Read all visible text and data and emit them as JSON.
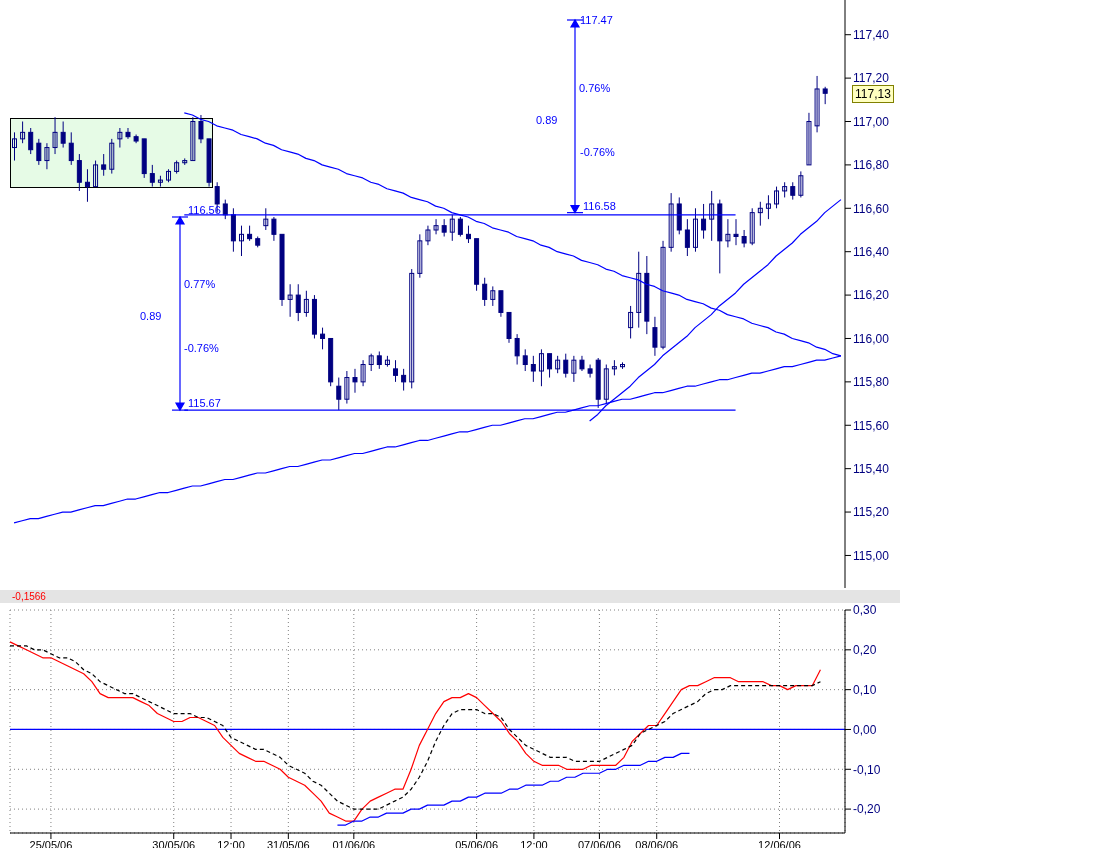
{
  "chart_data": [
    {
      "type": "candlestick",
      "ylim": [
        114.85,
        117.56
      ],
      "tick_labels": "y",
      "categories": [
        null,
        null,
        null,
        null,
        null,
        null,
        null,
        null,
        null,
        null,
        null,
        null,
        null,
        null,
        null,
        null,
        null,
        null,
        null,
        null,
        null,
        null,
        null,
        null,
        null,
        null,
        null,
        null,
        null,
        null,
        null,
        null,
        null,
        null,
        null,
        null,
        null,
        null,
        null,
        null,
        null,
        null,
        null,
        null,
        null,
        null,
        null,
        null,
        null,
        null,
        null,
        null,
        null,
        null,
        null,
        null,
        null,
        null,
        null,
        null,
        null,
        null,
        null,
        null,
        null,
        null,
        null,
        null,
        null,
        null,
        null,
        null,
        null,
        null,
        null,
        null,
        null,
        null,
        null,
        null,
        null,
        null,
        null,
        null,
        null,
        null,
        null,
        null,
        null,
        null,
        null,
        null,
        null,
        null,
        null,
        null,
        null,
        null,
        null,
        null,
        null,
        null,
        null
      ],
      "yticks": [
        {
          "value": 115,
          "label": "115,00"
        },
        {
          "value": 115.2,
          "label": "115,20"
        },
        {
          "value": 115.4,
          "label": "115,40"
        },
        {
          "value": 115.6,
          "label": "115,60"
        },
        {
          "value": 115.8,
          "label": "115,80"
        },
        {
          "value": 116,
          "label": "116,00"
        },
        {
          "value": 116.2,
          "label": "116,20"
        },
        {
          "value": 116.4,
          "label": "116,40"
        },
        {
          "value": 116.6,
          "label": "116,60"
        },
        {
          "value": 116.8,
          "label": "116,80"
        },
        {
          "value": 117,
          "label": "117,00"
        },
        {
          "value": 117.2,
          "label": "117,20"
        },
        {
          "value": 117.4,
          "label": "117,40"
        }
      ],
      "series": [
        {
          "color": "#000080",
          "ohlc": [
            [
              116.88,
              116.95,
              116.82,
              116.92
            ],
            [
              116.92,
              117.0,
              116.9,
              116.95
            ],
            [
              116.95,
              116.97,
              116.85,
              116.87
            ],
            [
              116.9,
              116.92,
              116.8,
              116.82
            ],
            [
              116.82,
              116.9,
              116.78,
              116.88
            ],
            [
              116.88,
              117.02,
              116.85,
              116.95
            ],
            [
              116.95,
              117.0,
              116.88,
              116.9
            ],
            [
              116.9,
              116.95,
              116.8,
              116.82
            ],
            [
              116.82,
              116.85,
              116.68,
              116.72
            ],
            [
              116.72,
              116.78,
              116.63,
              116.7
            ],
            [
              116.7,
              116.82,
              116.7,
              116.8
            ],
            [
              116.8,
              116.85,
              116.75,
              116.78
            ],
            [
              116.78,
              116.92,
              116.76,
              116.9
            ],
            [
              116.92,
              116.97,
              116.88,
              116.95
            ],
            [
              116.95,
              116.97,
              116.92,
              116.93
            ],
            [
              116.93,
              116.94,
              116.9,
              116.91
            ],
            [
              116.92,
              116.92,
              116.74,
              116.76
            ],
            [
              116.76,
              116.8,
              116.7,
              116.72
            ],
            [
              116.72,
              116.75,
              116.7,
              116.73
            ],
            [
              116.73,
              116.78,
              116.72,
              116.77
            ],
            [
              116.77,
              116.82,
              116.76,
              116.81
            ],
            [
              116.81,
              116.83,
              116.8,
              116.82
            ],
            [
              116.82,
              117.02,
              116.82,
              117.0
            ],
            [
              117.0,
              117.03,
              116.9,
              116.92
            ],
            [
              116.92,
              116.92,
              116.7,
              116.72
            ],
            [
              116.7,
              116.72,
              116.58,
              116.62
            ],
            [
              116.62,
              116.64,
              116.55,
              116.57
            ],
            [
              116.57,
              116.6,
              116.4,
              116.45
            ],
            [
              116.45,
              116.52,
              116.38,
              116.48
            ],
            [
              116.48,
              116.52,
              116.45,
              116.46
            ],
            [
              116.46,
              116.47,
              116.42,
              116.43
            ],
            [
              116.52,
              116.6,
              116.5,
              116.55
            ],
            [
              116.55,
              116.56,
              116.45,
              116.48
            ],
            [
              116.48,
              116.48,
              116.15,
              116.18
            ],
            [
              116.18,
              116.25,
              116.1,
              116.2
            ],
            [
              116.2,
              116.25,
              116.08,
              116.12
            ],
            [
              116.12,
              116.22,
              116.1,
              116.18
            ],
            [
              116.18,
              116.2,
              116.0,
              116.02
            ],
            [
              116.02,
              116.05,
              115.95,
              116.0
            ],
            [
              116.0,
              116.0,
              115.78,
              115.8
            ],
            [
              115.78,
              115.82,
              115.67,
              115.72
            ],
            [
              115.72,
              115.85,
              115.7,
              115.82
            ],
            [
              115.82,
              115.86,
              115.75,
              115.8
            ],
            [
              115.8,
              115.9,
              115.78,
              115.88
            ],
            [
              115.88,
              115.93,
              115.85,
              115.92
            ],
            [
              115.92,
              115.94,
              115.86,
              115.88
            ],
            [
              115.88,
              115.92,
              115.87,
              115.9
            ],
            [
              115.86,
              115.9,
              115.8,
              115.83
            ],
            [
              115.83,
              115.86,
              115.76,
              115.8
            ],
            [
              115.8,
              116.32,
              115.77,
              116.3
            ],
            [
              116.3,
              116.48,
              116.28,
              116.45
            ],
            [
              116.45,
              116.52,
              116.43,
              116.5
            ],
            [
              116.5,
              116.55,
              116.48,
              116.52
            ],
            [
              116.52,
              116.55,
              116.47,
              116.49
            ],
            [
              116.49,
              116.57,
              116.45,
              116.55
            ],
            [
              116.55,
              116.56,
              116.47,
              116.48
            ],
            [
              116.48,
              116.52,
              116.44,
              116.46
            ],
            [
              116.46,
              116.46,
              116.22,
              116.25
            ],
            [
              116.25,
              116.28,
              116.15,
              116.18
            ],
            [
              116.18,
              116.24,
              116.15,
              116.22
            ],
            [
              116.22,
              116.22,
              116.1,
              116.12
            ],
            [
              116.12,
              116.12,
              115.98,
              116.0
            ],
            [
              116.0,
              116.02,
              115.88,
              115.92
            ],
            [
              115.92,
              115.95,
              115.85,
              115.88
            ],
            [
              115.88,
              115.92,
              115.8,
              115.85
            ],
            [
              115.85,
              115.95,
              115.78,
              115.93
            ],
            [
              115.93,
              115.93,
              115.82,
              115.86
            ],
            [
              115.86,
              115.92,
              115.84,
              115.9
            ],
            [
              115.9,
              115.93,
              115.82,
              115.84
            ],
            [
              115.84,
              115.92,
              115.8,
              115.9
            ],
            [
              115.9,
              115.92,
              115.85,
              115.86
            ],
            [
              115.86,
              115.88,
              115.82,
              115.84
            ],
            [
              115.9,
              115.91,
              115.68,
              115.72
            ],
            [
              115.72,
              115.88,
              115.7,
              115.86
            ],
            [
              115.86,
              115.9,
              115.83,
              115.87
            ],
            [
              115.87,
              115.89,
              115.86,
              115.88
            ],
            [
              116.05,
              116.15,
              116.0,
              116.12
            ],
            [
              116.12,
              116.4,
              116.05,
              116.3
            ],
            [
              116.3,
              116.38,
              116.02,
              116.08
            ],
            [
              116.05,
              116.1,
              115.92,
              115.96
            ],
            [
              115.96,
              116.45,
              115.95,
              116.42
            ],
            [
              116.42,
              116.67,
              116.4,
              116.62
            ],
            [
              116.62,
              116.65,
              116.48,
              116.5
            ],
            [
              116.5,
              116.55,
              116.38,
              116.42
            ],
            [
              116.42,
              116.6,
              116.4,
              116.55
            ],
            [
              116.55,
              116.62,
              116.46,
              116.5
            ],
            [
              116.55,
              116.68,
              116.45,
              116.62
            ],
            [
              116.62,
              116.64,
              116.3,
              116.45
            ],
            [
              116.45,
              116.55,
              116.42,
              116.48
            ],
            [
              116.48,
              116.55,
              116.43,
              116.47
            ],
            [
              116.47,
              116.5,
              116.42,
              116.44
            ],
            [
              116.44,
              116.6,
              116.43,
              116.58
            ],
            [
              116.58,
              116.63,
              116.52,
              116.6
            ],
            [
              116.6,
              116.66,
              116.55,
              116.62
            ],
            [
              116.62,
              116.7,
              116.6,
              116.68
            ],
            [
              116.68,
              116.72,
              116.65,
              116.7
            ],
            [
              116.7,
              116.72,
              116.64,
              116.66
            ],
            [
              116.66,
              116.77,
              116.65,
              116.75
            ],
            [
              116.8,
              117.04,
              116.8,
              117.0
            ],
            [
              116.98,
              117.21,
              116.95,
              117.15
            ],
            [
              117.15,
              117.16,
              117.08,
              117.13
            ],
            null,
            null
          ]
        },
        {
          "type": "line",
          "color": "#0000ff",
          "values": [
            null,
            null,
            null,
            null,
            null,
            null,
            null,
            null,
            null,
            null,
            null,
            null,
            null,
            null,
            null,
            null,
            null,
            null,
            null,
            null,
            null,
            117.04,
            117.03,
            117.01,
            117.0,
            116.98,
            116.97,
            116.96,
            116.94,
            116.93,
            116.92,
            116.9,
            116.89,
            116.87,
            116.86,
            116.85,
            116.83,
            116.82,
            116.8,
            116.79,
            116.78,
            116.76,
            116.75,
            116.74,
            116.72,
            116.71,
            116.69,
            116.68,
            116.67,
            116.65,
            116.64,
            116.63,
            116.61,
            116.6,
            116.58,
            116.57,
            116.56,
            116.54,
            116.53,
            116.51,
            116.5,
            116.49,
            116.47,
            116.46,
            116.45,
            116.43,
            116.42,
            116.4,
            116.39,
            116.38,
            116.36,
            116.35,
            116.34,
            116.32,
            116.31,
            116.29,
            116.28,
            116.27,
            116.25,
            116.24,
            116.22,
            116.21,
            116.2,
            116.18,
            116.17,
            116.16,
            116.14,
            116.13,
            116.11,
            116.1,
            116.09,
            116.07,
            116.06,
            116.05,
            116.03,
            116.02,
            116.0,
            115.99,
            115.98,
            115.96,
            115.95,
            115.93,
            115.92
          ]
        },
        {
          "type": "line",
          "color": "#0000ff",
          "values": [
            115.15,
            115.16,
            115.17,
            115.17,
            115.18,
            115.19,
            115.2,
            115.2,
            115.21,
            115.22,
            115.23,
            115.23,
            115.24,
            115.25,
            115.26,
            115.26,
            115.27,
            115.28,
            115.29,
            115.29,
            115.3,
            115.31,
            115.32,
            115.32,
            115.33,
            115.34,
            115.35,
            115.35,
            115.36,
            115.37,
            115.38,
            115.38,
            115.39,
            115.4,
            115.41,
            115.41,
            115.42,
            115.43,
            115.44,
            115.44,
            115.45,
            115.46,
            115.47,
            115.47,
            115.48,
            115.49,
            115.5,
            115.5,
            115.51,
            115.52,
            115.53,
            115.53,
            115.54,
            115.55,
            115.56,
            115.57,
            115.57,
            115.58,
            115.59,
            115.6,
            115.6,
            115.61,
            115.62,
            115.63,
            115.63,
            115.64,
            115.65,
            115.66,
            115.66,
            115.67,
            115.68,
            115.69,
            115.69,
            115.7,
            115.71,
            115.72,
            115.72,
            115.73,
            115.74,
            115.75,
            115.75,
            115.76,
            115.77,
            115.78,
            115.78,
            115.79,
            115.8,
            115.81,
            115.81,
            115.82,
            115.83,
            115.84,
            115.84,
            115.85,
            115.86,
            115.87,
            115.87,
            115.88,
            115.89,
            115.9,
            115.9,
            115.91,
            115.92
          ]
        },
        {
          "type": "line",
          "color": "#0000ff",
          "values": [
            null,
            null,
            null,
            null,
            null,
            null,
            null,
            null,
            null,
            null,
            null,
            null,
            null,
            null,
            null,
            null,
            null,
            null,
            null,
            null,
            null,
            null,
            null,
            null,
            null,
            null,
            null,
            null,
            null,
            null,
            null,
            null,
            null,
            null,
            null,
            null,
            null,
            null,
            null,
            null,
            null,
            null,
            null,
            null,
            null,
            null,
            null,
            null,
            null,
            null,
            null,
            null,
            null,
            null,
            null,
            null,
            null,
            null,
            null,
            null,
            null,
            null,
            null,
            null,
            null,
            null,
            null,
            null,
            null,
            null,
            null,
            115.62,
            115.65,
            115.69,
            115.72,
            115.75,
            115.78,
            115.82,
            115.85,
            115.88,
            115.92,
            115.95,
            115.98,
            116.01,
            116.05,
            116.08,
            116.11,
            116.15,
            116.18,
            116.21,
            116.25,
            116.28,
            116.31,
            116.34,
            116.38,
            116.41,
            116.44,
            116.48,
            116.51,
            116.54,
            116.58,
            116.61,
            116.64
          ]
        },
        {
          "type": "line",
          "color": "#0000ff",
          "values": [
            null,
            null,
            null,
            null,
            null,
            null,
            null,
            null,
            null,
            null,
            null,
            null,
            null,
            null,
            null,
            null,
            null,
            null,
            null,
            null,
            null,
            116.57,
            116.57,
            116.57,
            116.57,
            116.57,
            116.57,
            116.57,
            116.57,
            116.57,
            116.57,
            116.57,
            116.57,
            116.57,
            116.57,
            116.57,
            116.57,
            116.57,
            116.57,
            116.57,
            116.57,
            116.57,
            116.57,
            116.57,
            116.57,
            116.57,
            116.57,
            116.57,
            116.57,
            116.57,
            116.57,
            116.57,
            116.57,
            116.57,
            116.57,
            116.57,
            116.57,
            116.57,
            116.57,
            116.57,
            116.57,
            116.57,
            116.57,
            116.57,
            116.57,
            116.57,
            116.57,
            116.57,
            116.57,
            116.57,
            116.57,
            116.57,
            116.57,
            116.57,
            116.57,
            116.57,
            116.57,
            116.57,
            116.57,
            116.57,
            116.57,
            116.57,
            116.57,
            116.57,
            116.57,
            116.57,
            116.57,
            116.57,
            116.57,
            116.57,
            null,
            null,
            null,
            null,
            null,
            null,
            null,
            null,
            null,
            null,
            null,
            null,
            null
          ]
        },
        {
          "type": "line",
          "color": "#0000ff",
          "values": [
            null,
            null,
            null,
            null,
            null,
            null,
            null,
            null,
            null,
            null,
            null,
            null,
            null,
            null,
            null,
            null,
            null,
            null,
            null,
            null,
            null,
            115.67,
            115.67,
            115.67,
            115.67,
            115.67,
            115.67,
            115.67,
            115.67,
            115.67,
            115.67,
            115.67,
            115.67,
            115.67,
            115.67,
            115.67,
            115.67,
            115.67,
            115.67,
            115.67,
            115.67,
            115.67,
            115.67,
            115.67,
            115.67,
            115.67,
            115.67,
            115.67,
            115.67,
            115.67,
            115.67,
            115.67,
            115.67,
            115.67,
            115.67,
            115.67,
            115.67,
            115.67,
            115.67,
            115.67,
            115.67,
            115.67,
            115.67,
            115.67,
            115.67,
            115.67,
            115.67,
            115.67,
            115.67,
            115.67,
            115.67,
            115.67,
            115.67,
            115.67,
            115.67,
            115.67,
            115.67,
            115.67,
            115.67,
            115.67,
            115.67,
            115.67,
            115.67,
            115.67,
            115.67,
            115.67,
            115.67,
            115.67,
            115.67,
            115.67,
            null,
            null,
            null,
            null,
            null,
            null,
            null,
            null,
            null,
            null,
            null,
            null,
            null
          ]
        }
      ],
      "annotations": [
        "117.47",
        "0.76%",
        "0.89",
        "-0.76%",
        {
          "text": "116.58",
          "y": 116.58
        },
        {
          "text": "116.56",
          "y": 116.56
        },
        "0.77%",
        "0.89",
        "-0.76%",
        {
          "text": "115.67",
          "y": 115.67
        },
        "117,13"
      ]
    },
    {
      "type": "line",
      "ylim": [
        -0.26,
        0.3
      ],
      "grid": true,
      "categories": [
        null,
        null,
        null,
        null,
        null,
        "25/05/06",
        null,
        null,
        null,
        null,
        null,
        null,
        null,
        null,
        null,
        null,
        null,
        null,
        null,
        null,
        "30/05/06",
        null,
        null,
        null,
        null,
        null,
        null,
        "12:00",
        null,
        null,
        null,
        null,
        null,
        null,
        "31/05/06",
        null,
        null,
        null,
        null,
        null,
        null,
        null,
        "01/06/06",
        null,
        null,
        null,
        null,
        null,
        null,
        null,
        null,
        null,
        null,
        null,
        null,
        null,
        null,
        "05/06/06",
        null,
        null,
        null,
        null,
        null,
        null,
        "12:00",
        null,
        null,
        null,
        null,
        null,
        null,
        null,
        "07/06/06",
        null,
        null,
        null,
        null,
        null,
        null,
        "08/06/06",
        null,
        null,
        null,
        null,
        null,
        null,
        null,
        null,
        null,
        null,
        null,
        null,
        null,
        null,
        "12/06/06",
        null,
        null,
        null,
        null,
        null,
        null,
        null,
        null
      ],
      "yticks": [
        {
          "value": -0.2,
          "label": "-0,20"
        },
        {
          "value": -0.1,
          "label": "-0,10"
        },
        {
          "value": 0,
          "label": "0,00"
        },
        {
          "value": 0.1,
          "label": "0,10"
        },
        {
          "value": 0.2,
          "label": "0,20"
        },
        {
          "value": 0.3,
          "label": "0,30"
        }
      ],
      "ref_lines": [
        {
          "axis": "y",
          "value": 0,
          "color": "#0000ff"
        }
      ],
      "annotations": [
        "-0,1566"
      ],
      "series": [
        {
          "color": "#ff0000",
          "values": [
            0.22,
            0.21,
            0.2,
            0.19,
            0.18,
            0.18,
            0.17,
            0.16,
            0.15,
            0.14,
            0.12,
            0.09,
            0.08,
            0.08,
            0.08,
            0.08,
            0.07,
            0.06,
            0.04,
            0.03,
            0.02,
            0.02,
            0.03,
            0.03,
            0.02,
            0.01,
            -0.02,
            -0.04,
            -0.06,
            -0.07,
            -0.08,
            -0.08,
            -0.09,
            -0.1,
            -0.12,
            -0.13,
            -0.14,
            -0.16,
            -0.18,
            -0.21,
            -0.22,
            -0.23,
            -0.23,
            -0.2,
            -0.18,
            -0.17,
            -0.16,
            -0.15,
            -0.15,
            -0.1,
            -0.04,
            0.0,
            0.04,
            0.07,
            0.08,
            0.08,
            0.09,
            0.08,
            0.06,
            0.04,
            0.02,
            -0.01,
            -0.03,
            -0.06,
            -0.08,
            -0.09,
            -0.09,
            -0.09,
            -0.1,
            -0.1,
            -0.1,
            -0.09,
            -0.09,
            -0.09,
            -0.09,
            -0.07,
            -0.03,
            -0.01,
            0.01,
            0.01,
            0.04,
            0.07,
            0.1,
            0.11,
            0.11,
            0.12,
            0.13,
            0.13,
            0.13,
            0.12,
            0.12,
            0.12,
            0.12,
            0.11,
            0.11,
            0.1,
            0.11,
            0.11,
            0.11,
            0.15,
            null,
            null,
            null
          ]
        },
        {
          "color": "#000000",
          "line_style": "dashed",
          "values": [
            0.21,
            0.21,
            0.21,
            0.2,
            0.2,
            0.19,
            0.18,
            0.18,
            0.17,
            0.15,
            0.14,
            0.12,
            0.11,
            0.1,
            0.09,
            0.09,
            0.08,
            0.07,
            0.06,
            0.05,
            0.04,
            0.04,
            0.04,
            0.03,
            0.03,
            0.02,
            0.01,
            -0.02,
            -0.03,
            -0.04,
            -0.05,
            -0.05,
            -0.06,
            -0.07,
            -0.09,
            -0.1,
            -0.11,
            -0.13,
            -0.14,
            -0.16,
            -0.18,
            -0.19,
            -0.2,
            -0.2,
            -0.2,
            -0.2,
            -0.19,
            -0.18,
            -0.17,
            -0.15,
            -0.12,
            -0.08,
            -0.03,
            0.01,
            0.04,
            0.05,
            0.05,
            0.05,
            0.04,
            0.04,
            0.03,
            0.0,
            -0.02,
            -0.04,
            -0.05,
            -0.06,
            -0.07,
            -0.07,
            -0.07,
            -0.08,
            -0.08,
            -0.08,
            -0.08,
            -0.07,
            -0.06,
            -0.05,
            -0.04,
            -0.01,
            0.0,
            0.01,
            0.02,
            0.04,
            0.05,
            0.06,
            0.07,
            0.09,
            0.1,
            0.1,
            0.11,
            0.11,
            0.11,
            0.11,
            0.11,
            0.11,
            0.11,
            0.11,
            0.11,
            0.11,
            0.11,
            0.12,
            null,
            null,
            null
          ]
        },
        {
          "color": "#0000ff",
          "values": [
            null,
            null,
            null,
            null,
            null,
            null,
            null,
            null,
            null,
            null,
            null,
            null,
            null,
            null,
            null,
            null,
            null,
            null,
            null,
            null,
            null,
            null,
            null,
            null,
            null,
            null,
            null,
            null,
            null,
            null,
            null,
            null,
            null,
            null,
            null,
            null,
            null,
            null,
            null,
            null,
            -0.24,
            -0.24,
            -0.23,
            -0.23,
            -0.22,
            -0.22,
            -0.21,
            -0.21,
            -0.21,
            -0.2,
            -0.2,
            -0.19,
            -0.19,
            -0.19,
            -0.18,
            -0.18,
            -0.17,
            -0.17,
            -0.16,
            -0.16,
            -0.16,
            -0.15,
            -0.15,
            -0.14,
            -0.14,
            -0.14,
            -0.13,
            -0.13,
            -0.12,
            -0.12,
            -0.11,
            -0.11,
            -0.11,
            -0.1,
            -0.1,
            -0.09,
            -0.09,
            -0.09,
            -0.08,
            -0.08,
            -0.07,
            -0.07,
            -0.06,
            -0.06,
            null,
            null,
            null,
            null,
            null,
            null,
            null,
            null,
            null,
            null,
            null,
            null,
            null,
            null,
            null,
            null,
            null,
            null,
            null
          ]
        }
      ]
    }
  ]
}
